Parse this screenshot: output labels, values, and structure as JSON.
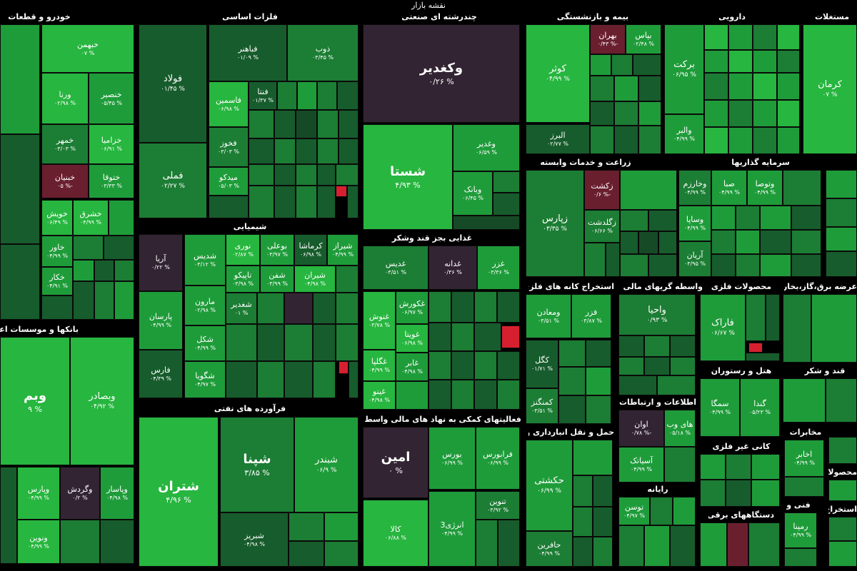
{
  "title": "نقشه بازار",
  "sectors": {
    "khodro": "خودرو و قطعات",
    "felezat": "فلزات اساسی",
    "chandreshte": "چندرشته ای صنعتی",
    "bime": "بیمه و بازنشستگی",
    "daroui": "دارویی",
    "mostaghelat": "مستغلات",
    "bankha": "بانکها و موسسات اعتباری",
    "shimiaei": "شیمیایی",
    "ghazaei": "غذایی بجز قند وشکر",
    "zeraat": "زراعت و خدمات وابسته",
    "sarmaye": "سرمایه گذاریها",
    "estekhraj": "استخراج کانه های فلزی",
    "vasete": "واسطه گریهای مالی و",
    "mahsoolat": "محصولات فلزی",
    "arze": "عرضه برق،گاز،بخار و",
    "hotel": "هتل و رستوران",
    "ghand": "قند و شکر",
    "faravarde": "فرآورده های نفتی",
    "faaliat": "فعالیتهای کمکی به نهاد های مالی واسط",
    "haml": "حمل و نقل انبارداری و",
    "ettelaat": "اطلاعات و ارتباطات",
    "kani": "کانی غیر فلزی",
    "mokhaberat": "مخابرات",
    "rayane": "رایانه",
    "dastgah": "دستگاههای برقی",
    "fani": "فنی و",
    "mahsoolat2": "محصولات",
    "estekhraj2": "استخراج"
  },
  "tiles": {
    "khbahman": {
      "n": "خبهمن",
      "v": "۰۷ %"
    },
    "vrena": {
      "n": "ورنا",
      "v": "۰۲/۹۸ %"
    },
    "khensir": {
      "n": "خنصیر",
      "v": "۰۵/۴۵ %"
    },
    "khamhar": {
      "n": "خمهر",
      "v": "۰۳/۰۳ %"
    },
    "khazamia": {
      "n": "خزامیا",
      "v": "۰۶/۹۱ %"
    },
    "khbonyan": {
      "n": "خبنیان",
      "v": "۰۵ %-"
    },
    "khtoga": {
      "n": "ختوقا",
      "v": "۰۳/۳۳ %"
    },
    "khvibesh": {
      "n": "خویش",
      "v": "۰۶/۴۹ %"
    },
    "khshargh": {
      "n": "خشرق",
      "v": "۰۴/۹۹ %"
    },
    "khavar": {
      "n": "خاور",
      "v": "۰۴/۹۹ %"
    },
    "khkar": {
      "n": "خکار",
      "v": "۰۴/۹۱ %"
    },
    "foulad": {
      "n": "فولاد",
      "v": "۰۱/۴۵ %"
    },
    "fameli": {
      "n": "فملی",
      "v": "۰۲/۲۷ %"
    },
    "fabahonar": {
      "n": "فباهنر",
      "v": "۰۱/۰۹ %"
    },
    "zob": {
      "n": "ذوب",
      "v": "۰۳/۴۵ %"
    },
    "fasmin": {
      "n": "فاسمین",
      "v": "۰۶/۹۸ %"
    },
    "fenta": {
      "n": "فنتا",
      "v": "۰۱/۳۷ %"
    },
    "fakhooz": {
      "n": "فخوز",
      "v": "۰۳/۰۳ %"
    },
    "midko": {
      "n": "میدکو",
      "v": "۰۵/۰۳ %"
    },
    "vaghadir": {
      "n": "وکغدیر",
      "v": "۰/۲۶ %"
    },
    "shasta": {
      "n": "شستا",
      "v": "۴/۹۳ %"
    },
    "vaghadir2": {
      "n": "وغدیر",
      "v": "۰۶/۵۹ %"
    },
    "vapank": {
      "n": "وبانک",
      "v": "۰۶/۴۵ %"
    },
    "kowsar": {
      "n": "کوثر",
      "v": "۰۴/۹۹ %"
    },
    "bahran": {
      "n": "بهران",
      "v": "۰/۴۳ %-"
    },
    "bepas": {
      "n": "بپاس",
      "v": "۰۲/۴۸ %"
    },
    "alborz": {
      "n": "البرز",
      "v": "۰۲/۷۷ %"
    },
    "barakat": {
      "n": "برکت",
      "v": "۰۶/۹۵ %"
    },
    "valbar": {
      "n": "والبر",
      "v": "۰۴/۹۹ %"
    },
    "kerman": {
      "n": "کرمان",
      "v": "۰۷ %"
    },
    "vebmellat": {
      "n": "وبم",
      "v": "۹ %"
    },
    "vesader": {
      "n": "وبصادر",
      "v": "۰۴/۹۲ %"
    },
    "vparis": {
      "n": "وپارس",
      "v": "۰۴/۹۹ %"
    },
    "vgardesh": {
      "n": "وگردش",
      "v": "۰/۲ %"
    },
    "vpasar": {
      "n": "وپاسار",
      "v": "۰۴/۹۸ %"
    },
    "vnovin": {
      "n": "ونوین",
      "v": "۰۴/۹۹ %"
    },
    "aria": {
      "n": "آریا",
      "v": "۰/۲۲ %"
    },
    "shedis": {
      "n": "شدیس",
      "v": "۰۳/۱۲ %"
    },
    "noori": {
      "n": "نوری",
      "v": "۰۲/۸۷ %"
    },
    "bouali": {
      "n": "بوعلی",
      "v": "۰۳/۹۷ %"
    },
    "kermasha": {
      "n": "کرماشا",
      "v": "۰۶/۹۸ %"
    },
    "shiraz": {
      "n": "شیراز",
      "v": "۰۴/۹۹ %"
    },
    "tapiko": {
      "n": "تاپیکو",
      "v": "۰۳/۹۸ %"
    },
    "shafan": {
      "n": "شفن",
      "v": "۰۳/۹۹ %"
    },
    "shiran": {
      "n": "شیران",
      "v": "۰۴/۹۸ %"
    },
    "parsan": {
      "n": "پارسان",
      "v": "۰۴/۹۹ %"
    },
    "maron": {
      "n": "مارون",
      "v": "۰۲/۹۸ %"
    },
    "shaghadir": {
      "n": "شغدیر",
      "v": "۰۱ %"
    },
    "fars": {
      "n": "فارس",
      "v": "۰۴/۳۹ %"
    },
    "shakal": {
      "n": "شکل",
      "v": "۰۴/۹۹ %"
    },
    "shgouya": {
      "n": "شگویا",
      "v": "۰۴/۹۷ %"
    },
    "ghadis": {
      "n": "غدیس",
      "v": "۰۳/۵۱ %"
    },
    "ghadaneh": {
      "n": "غدانه",
      "v": "۰/۳۶ %"
    },
    "ghazar": {
      "n": "غزر",
      "v": "۰۳/۳۶ %"
    },
    "ghkourosh": {
      "n": "غکورش",
      "v": "۰۶/۹۷ %"
    },
    "ghanosh": {
      "n": "غنوش",
      "v": "۰۳/۷۸ %"
    },
    "ghbeta": {
      "n": "غویتا",
      "v": "۰۶/۹۸ %"
    },
    "ghegla": {
      "n": "غگلپا",
      "v": "۰۴/۹۹ %"
    },
    "ghaber": {
      "n": "غابر",
      "v": "۰۴/۹۸ %"
    },
    "ghinou": {
      "n": "غینو",
      "v": "۰۴/۹۸ %"
    },
    "zparis": {
      "n": "زپارس",
      "v": "۰۳/۳۵ %"
    },
    "zakasht": {
      "n": "زکشت",
      "v": "۰/۶ %-"
    },
    "zagoldasht": {
      "n": "زگلدشت",
      "v": "۰۶/۶۶ %"
    },
    "vkhrazm": {
      "n": "وخارزم",
      "v": "۰۴/۹۹ %"
    },
    "seba": {
      "n": "صبا",
      "v": "۰۴/۹۹ %"
    },
    "vtousa": {
      "n": "وتوصا",
      "v": "۰۴/۹۹ %"
    },
    "vsapa": {
      "n": "وساپا",
      "v": "۰۴/۹۹ %"
    },
    "arian": {
      "n": "آریان",
      "v": "۰۳/۹۵ %"
    },
    "vamaaden": {
      "n": "ومعادن",
      "v": "۰۳/۵۱ %"
    },
    "fazar": {
      "n": "فزر",
      "v": "۰۳/۸۷ %"
    },
    "vahia": {
      "n": "واحیا",
      "v": "۰/۹۳ %"
    },
    "farak": {
      "n": "فاراک",
      "v": "۰۶/۶۷ %"
    },
    "kagol": {
      "n": "کگل",
      "v": "۰۱/۷۱ %"
    },
    "kamnegez": {
      "n": "کمنگنز",
      "v": "۰۳/۵۱ %"
    },
    "samga": {
      "n": "سمگا",
      "v": "۰۴/۹۹ %"
    },
    "ganda": {
      "n": "گندا",
      "v": "۰۵/۲۳ %"
    },
    "avan": {
      "n": "اوان",
      "v": "۰/۷۸ %-"
    },
    "haweb": {
      "n": "های وب",
      "v": "۰۵/۱۸ %"
    },
    "asiatek": {
      "n": "آسیاتک",
      "v": "۰۴/۹۹ %"
    },
    "ekhaber": {
      "n": "اخابر",
      "v": "۰۴/۹۹ %"
    },
    "toosan": {
      "n": "توسن",
      "v": "۰۴/۹۷ %"
    },
    "rampena": {
      "n": "رمپنا",
      "v": "۰۴/۹۹ %"
    },
    "shetran": {
      "n": "شتران",
      "v": "۴/۹۶ %"
    },
    "shepna": {
      "n": "شپنا",
      "v": "۳/۸۵ %"
    },
    "shebandar": {
      "n": "شبندر",
      "v": "۰۶/۹ %"
    },
    "shebriz": {
      "n": "شبریز",
      "v": "۰۴/۹۸ %"
    },
    "amin": {
      "n": "امین",
      "v": "۰ %"
    },
    "bours": {
      "n": "بورس",
      "v": "۰۶/۹۹ %"
    },
    "farabours": {
      "n": "فرابورس",
      "v": "۰۶/۹۹ %"
    },
    "kala": {
      "n": "کالا",
      "v": "۰۶/۸۸ %"
    },
    "energy3": {
      "n": "انرژی3",
      "v": "۰۴/۹۹ %"
    },
    "tenavin": {
      "n": "تنوین",
      "v": "۰۳/۹۲ %"
    },
    "hakeshti": {
      "n": "حکشتی",
      "v": "۰۶/۹۹ %"
    },
    "hafarin": {
      "n": "حافرین",
      "v": "۰۴/۹۹ %"
    }
  }
}
